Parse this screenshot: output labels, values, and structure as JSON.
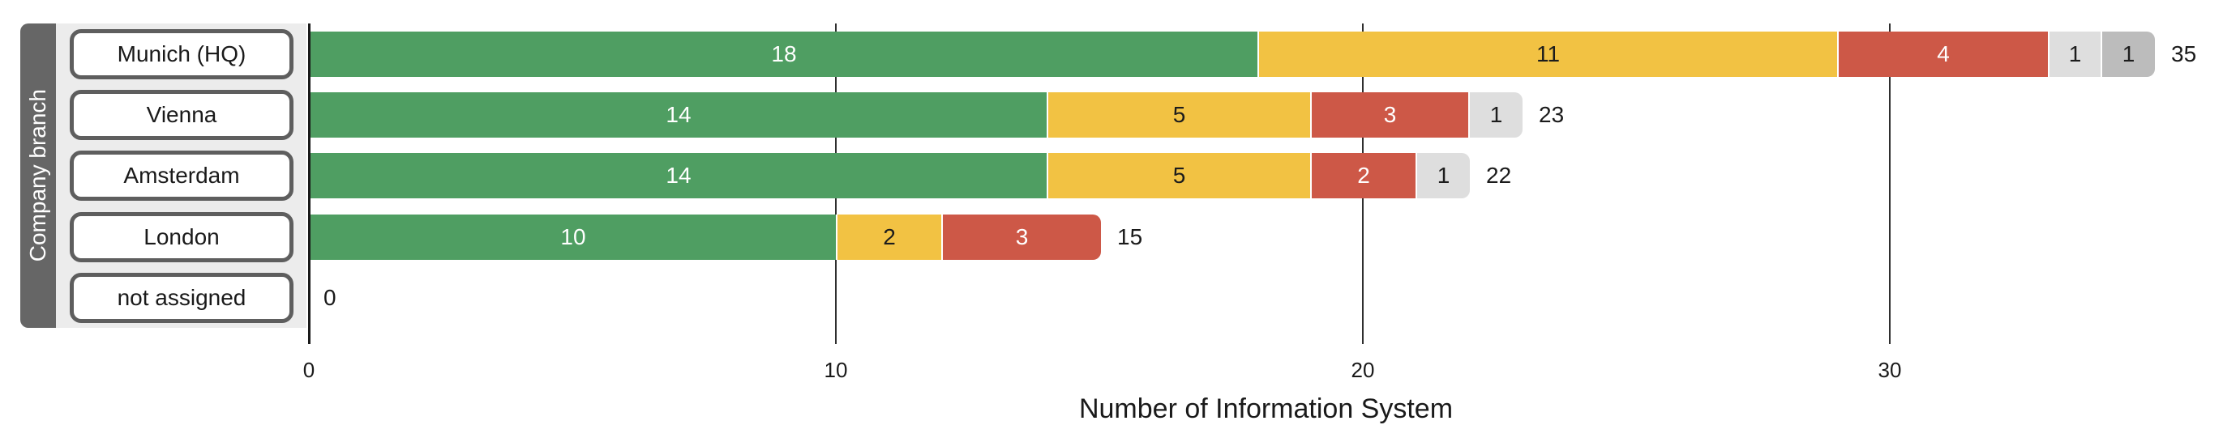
{
  "chart_data": {
    "type": "bar",
    "orientation": "horizontal-stacked",
    "ylabel": "Company branch",
    "xlabel": "Number of Information System",
    "categories": [
      "Munich (HQ)",
      "Vienna",
      "Amsterdam",
      "London",
      "not assigned"
    ],
    "series": [
      {
        "name": "green-segment",
        "color": "#4f9e62",
        "label_color": "#ffffff",
        "values": [
          18,
          14,
          14,
          10,
          0
        ]
      },
      {
        "name": "yellow-segment",
        "color": "#f2c243",
        "label_color": "#1c1c1c",
        "values": [
          11,
          5,
          5,
          2,
          0
        ]
      },
      {
        "name": "red-segment",
        "color": "#cd5847",
        "label_color": "#ffffff",
        "values": [
          4,
          3,
          2,
          3,
          0
        ]
      },
      {
        "name": "lightgray-segment",
        "color": "#dedede",
        "label_color": "#1c1c1c",
        "values": [
          1,
          1,
          1,
          0,
          0
        ]
      },
      {
        "name": "gray-segment",
        "color": "#bcbcbc",
        "label_color": "#1c1c1c",
        "values": [
          1,
          0,
          0,
          0,
          0
        ]
      }
    ],
    "totals": [
      35,
      23,
      22,
      15,
      0
    ],
    "x_ticks": [
      0,
      10,
      20,
      30
    ],
    "xlim": [
      0,
      36.3
    ],
    "grid": true,
    "legend": false
  },
  "colors": {
    "axis_band_bg": "#666666",
    "category_panel_bg": "#ececec",
    "category_button_bg": "#ffffff",
    "category_button_border": "#5e5e5e",
    "gridline": "#2f2f2f",
    "axis_line": "#1a1a1a",
    "text": "#1a1a1a",
    "background": "#ffffff"
  }
}
